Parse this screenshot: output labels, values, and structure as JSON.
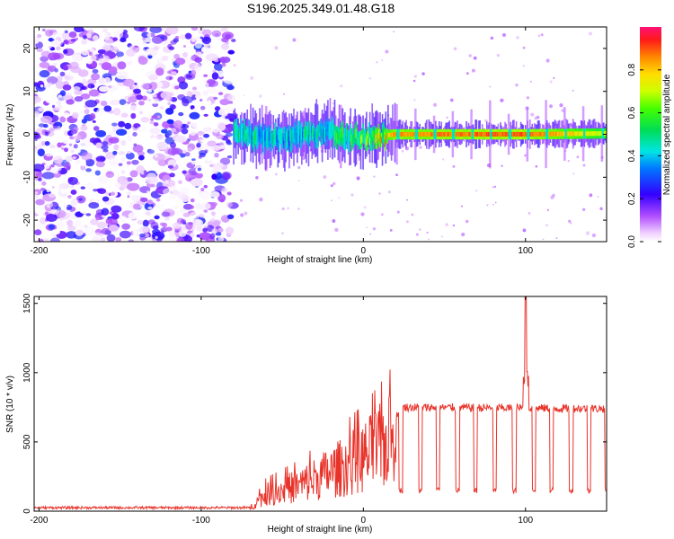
{
  "title": "S196.2025.349.01.48.G18",
  "chart_data": [
    {
      "type": "heatmap",
      "xlabel": "Height of straight line (km)",
      "ylabel": "Frequency (Hz)",
      "xlim": [
        -203,
        150
      ],
      "ylim": [
        -25,
        25
      ],
      "xticks": [
        -200,
        -100,
        0,
        100
      ],
      "xtick_labels": [
        "-200",
        "-100",
        "0",
        "100"
      ],
      "yticks": [
        -20,
        -10,
        0,
        10,
        20
      ],
      "ytick_labels": [
        "-20",
        "-10",
        "0",
        "10",
        "20"
      ],
      "colorbar": {
        "label": "Normalized spectral amplitude",
        "range": [
          0,
          1
        ],
        "ticks": [
          0.0,
          0.2,
          0.4,
          0.6,
          0.8
        ],
        "tick_labels": [
          "0.0",
          "0.2",
          "0.4",
          "0.6",
          "0.8"
        ],
        "colormap": "rainbow"
      },
      "noise_region": {
        "x_from": -203,
        "x_to": -80
      },
      "signal_track": [
        {
          "x": -80,
          "freq": 0.5,
          "amp": 0.45
        },
        {
          "x": -60,
          "freq": -1.0,
          "amp": 0.4
        },
        {
          "x": -40,
          "freq": -0.5,
          "amp": 0.4
        },
        {
          "x": -20,
          "freq": 1.0,
          "amp": 0.45
        },
        {
          "x": -15,
          "freq": -0.5,
          "amp": 0.5
        },
        {
          "x": 0,
          "freq": -0.8,
          "amp": 0.55
        },
        {
          "x": 20,
          "freq": 0.0,
          "amp": 0.85
        },
        {
          "x": 100,
          "freq": 0.0,
          "amp": 0.9
        },
        {
          "x": 150,
          "freq": 0.2,
          "amp": 0.7
        }
      ]
    },
    {
      "type": "line",
      "xlabel": "Height of straight line (km)",
      "ylabel": "SNR (10 * v/v)",
      "xlim": [
        -203,
        150
      ],
      "ylim": [
        0,
        1550
      ],
      "xticks": [
        -200,
        -100,
        0,
        100
      ],
      "xtick_labels": [
        "-200",
        "-100",
        "0",
        "100"
      ],
      "yticks": [
        0,
        500,
        1000,
        1500
      ],
      "ytick_labels": [
        "0",
        "500",
        "1000",
        "1500"
      ],
      "color": "#e8332a",
      "baseline_until_x": -70,
      "baseline_snr": 25,
      "ramp": [
        {
          "x": -70,
          "snr": 30
        },
        {
          "x": -60,
          "snr": 150
        },
        {
          "x": -40,
          "snr": 230
        },
        {
          "x": -20,
          "snr": 350
        },
        {
          "x": 0,
          "snr": 480
        },
        {
          "x": 15,
          "snr": 620
        },
        {
          "x": 25,
          "snr": 750
        },
        {
          "x": 150,
          "snr": 740
        }
      ],
      "dropouts_x": [
        9,
        22,
        34,
        45,
        57,
        68,
        80,
        92,
        104,
        115,
        127,
        138,
        149
      ],
      "dropout_snr": 150,
      "spike": {
        "x": 100,
        "snr": 1550
      }
    }
  ]
}
